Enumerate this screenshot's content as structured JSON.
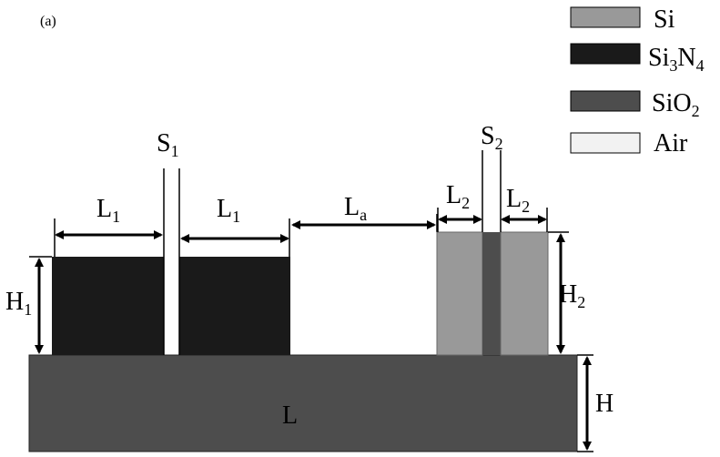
{
  "panel_label": "(a)",
  "legend": [
    {
      "label": "Si",
      "sub": "",
      "color": "#999999"
    },
    {
      "label": "Si",
      "sub": "3",
      "label2": "N",
      "sub2": "4",
      "color": "#1a1a1a"
    },
    {
      "label": "SiO",
      "sub": "2",
      "color": "#4d4d4d"
    },
    {
      "label": "Air",
      "sub": "",
      "color": "#f2f2f2"
    }
  ],
  "dims": {
    "L1_left": {
      "main": "L",
      "sub": "1"
    },
    "L1_right": {
      "main": "L",
      "sub": "1"
    },
    "La": {
      "main": "L",
      "sub": "a"
    },
    "L2_left": {
      "main": "L",
      "sub": "2"
    },
    "L2_right": {
      "main": "L",
      "sub": "2"
    },
    "S1": {
      "main": "S",
      "sub": "1"
    },
    "S2": {
      "main": "S",
      "sub": "2"
    },
    "H1": {
      "main": "H",
      "sub": "1"
    },
    "H2": {
      "main": "H",
      "sub": "2"
    },
    "H": {
      "main": "H",
      "sub": ""
    },
    "L": {
      "main": "L",
      "sub": ""
    }
  },
  "colors": {
    "substrate": "#4d4d4d",
    "si3n4": "#1a1a1a",
    "si": "#999999",
    "sio2_gap": "#4d4d4d"
  }
}
